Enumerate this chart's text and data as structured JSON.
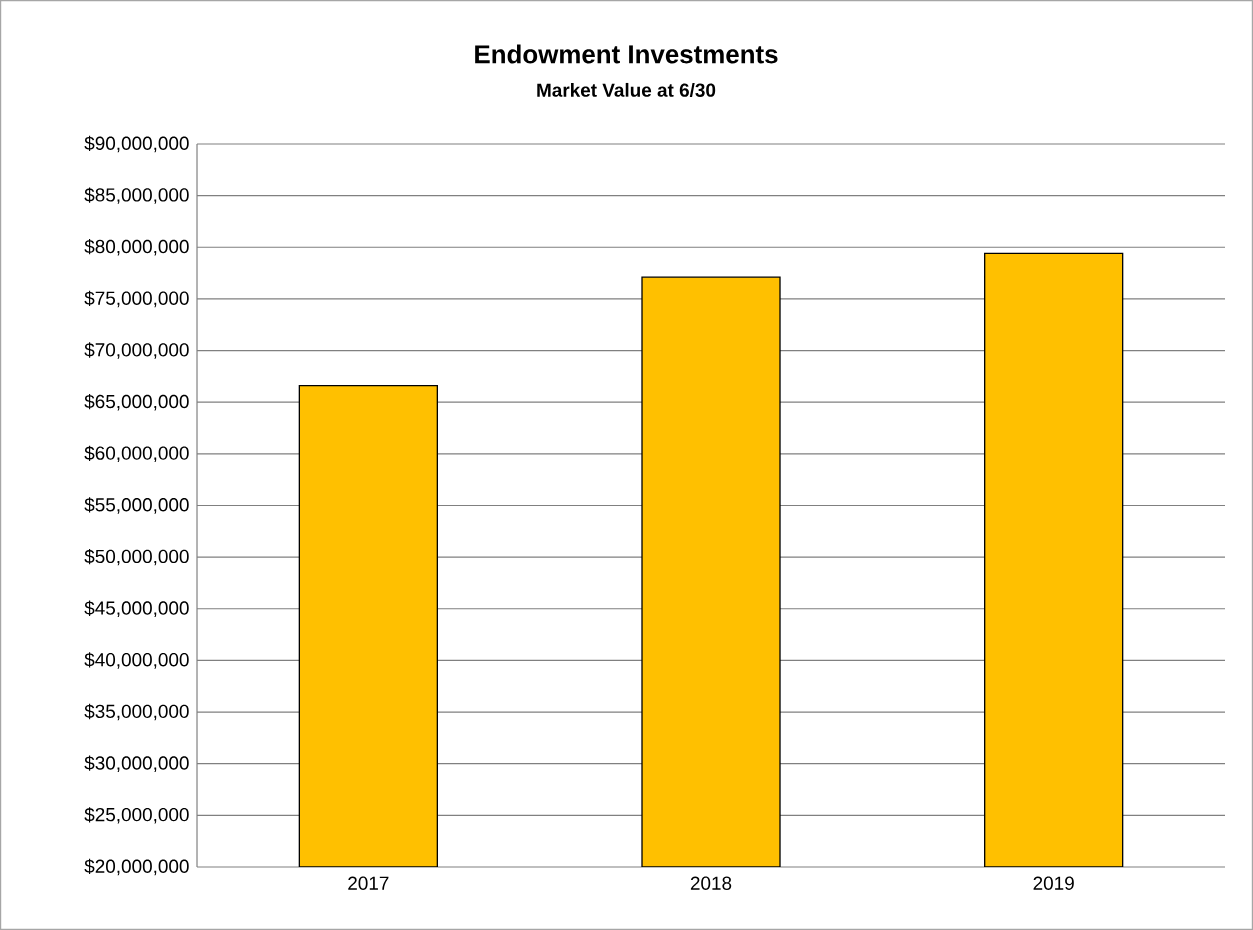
{
  "chart_data": {
    "type": "bar",
    "title": "Endowment Investments",
    "subtitle": "Market Value at 6/30",
    "categories": [
      "2017",
      "2018",
      "2019"
    ],
    "values": [
      66600000,
      77100000,
      79400000
    ],
    "color": "#ffc000",
    "ylim": [
      20000000,
      90000000
    ],
    "yticks": [
      {
        "value": 20000000,
        "label": "$20,000,000"
      },
      {
        "value": 25000000,
        "label": "$25,000,000"
      },
      {
        "value": 30000000,
        "label": "$30,000,000"
      },
      {
        "value": 35000000,
        "label": "$35,000,000"
      },
      {
        "value": 40000000,
        "label": "$40,000,000"
      },
      {
        "value": 45000000,
        "label": "$45,000,000"
      },
      {
        "value": 50000000,
        "label": "$50,000,000"
      },
      {
        "value": 55000000,
        "label": "$55,000,000"
      },
      {
        "value": 60000000,
        "label": "$60,000,000"
      },
      {
        "value": 65000000,
        "label": "$65,000,000"
      },
      {
        "value": 70000000,
        "label": "$70,000,000"
      },
      {
        "value": 75000000,
        "label": "$75,000,000"
      },
      {
        "value": 80000000,
        "label": "$80,000,000"
      },
      {
        "value": 85000000,
        "label": "$85,000,000"
      },
      {
        "value": 90000000,
        "label": "$90,000,000"
      }
    ],
    "grid": "y"
  }
}
